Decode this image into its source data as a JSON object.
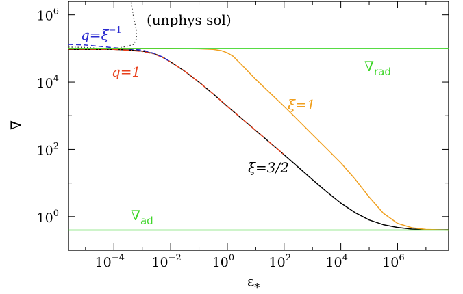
{
  "chart_data": {
    "type": "line",
    "xlabel": "ε",
    "xlabel_sub": "*",
    "ylabel": "∇",
    "x_scale": "log",
    "y_scale": "log",
    "xlim_log10": [
      -5.6,
      7.8
    ],
    "ylim_log10": [
      -1.0,
      6.4
    ],
    "x_tick_exponents": [
      -4,
      -2,
      0,
      2,
      4,
      6
    ],
    "y_tick_exponents": [
      0,
      2,
      4,
      6
    ],
    "tick_base": "10",
    "grid": false,
    "series": [
      {
        "id": "xi-3-2",
        "color": "#000000",
        "dash": "solid",
        "points": [
          [
            -5.6,
            4.97
          ],
          [
            -4,
            4.97
          ],
          [
            -3.4,
            4.95
          ],
          [
            -3,
            4.92
          ],
          [
            -2.6,
            4.85
          ],
          [
            -2.3,
            4.75
          ],
          [
            -2,
            4.6
          ],
          [
            -1.5,
            4.32
          ],
          [
            -1,
            4.0
          ],
          [
            -0.5,
            3.65
          ],
          [
            0,
            3.28
          ],
          [
            0.5,
            2.92
          ],
          [
            1,
            2.56
          ],
          [
            1.5,
            2.2
          ],
          [
            2,
            1.84
          ],
          [
            2.5,
            1.47
          ],
          [
            3,
            1.1
          ],
          [
            3.5,
            0.74
          ],
          [
            4,
            0.4
          ],
          [
            4.5,
            0.12
          ],
          [
            5,
            -0.1
          ],
          [
            5.5,
            -0.24
          ],
          [
            6,
            -0.32
          ],
          [
            6.5,
            -0.37
          ],
          [
            7,
            -0.39
          ],
          [
            7.8,
            -0.39
          ]
        ]
      },
      {
        "id": "q-1",
        "color": "#e8401c",
        "dash": "dashdot",
        "points": [
          [
            -5.6,
            4.98
          ],
          [
            -4,
            4.97
          ],
          [
            -3.4,
            4.94
          ],
          [
            -3,
            4.91
          ],
          [
            -2.6,
            4.84
          ],
          [
            -2.3,
            4.74
          ],
          [
            -2,
            4.6
          ],
          [
            -1.5,
            4.32
          ],
          [
            -1,
            4.0
          ],
          [
            -0.5,
            3.65
          ],
          [
            0,
            3.28
          ],
          [
            0.5,
            2.92
          ],
          [
            1,
            2.56
          ],
          [
            1.5,
            2.2
          ],
          [
            2,
            1.84
          ]
        ]
      },
      {
        "id": "q-xi-inv",
        "color": "#2a2ad0",
        "dash": "dashed",
        "points": [
          [
            -5.6,
            5.12
          ],
          [
            -5,
            5.1
          ],
          [
            -4.5,
            5.06
          ],
          [
            -4,
            5.02
          ],
          [
            -3.5,
            4.99
          ],
          [
            -3,
            4.95
          ],
          [
            -2.6,
            4.86
          ],
          [
            -2.3,
            4.75
          ],
          [
            -2,
            4.6
          ]
        ]
      },
      {
        "id": "unphys",
        "color": "#444444",
        "dash": "dotted",
        "points": [
          [
            -5.6,
            5.04
          ],
          [
            -5,
            5.03
          ],
          [
            -4.5,
            5.0
          ],
          [
            -4.2,
            4.97
          ],
          [
            -3.9,
            5.01
          ],
          [
            -3.55,
            5.06
          ],
          [
            -3.3,
            5.12
          ],
          [
            -3.2,
            5.3
          ],
          [
            -3.22,
            5.6
          ],
          [
            -3.3,
            5.9
          ],
          [
            -3.4,
            6.4
          ]
        ]
      },
      {
        "id": "xi-1",
        "color": "#f0a020",
        "dash": "solid",
        "points": [
          [
            -5.6,
            5.0
          ],
          [
            -2,
            5.0
          ],
          [
            -1,
            4.99
          ],
          [
            -0.5,
            4.97
          ],
          [
            -0.2,
            4.93
          ],
          [
            0,
            4.87
          ],
          [
            0.2,
            4.77
          ],
          [
            0.5,
            4.52
          ],
          [
            1,
            4.08
          ],
          [
            1.5,
            3.68
          ],
          [
            2,
            3.28
          ],
          [
            2.5,
            2.86
          ],
          [
            3,
            2.44
          ],
          [
            3.5,
            2.02
          ],
          [
            4,
            1.6
          ],
          [
            4.5,
            1.12
          ],
          [
            5,
            0.58
          ],
          [
            5.5,
            0.1
          ],
          [
            6,
            -0.2
          ],
          [
            6.5,
            -0.33
          ],
          [
            7,
            -0.38
          ],
          [
            7.8,
            -0.4
          ]
        ]
      },
      {
        "id": "nabla-rad",
        "color": "#3fd62a",
        "dash": "solid",
        "points": [
          [
            -5.6,
            5.0
          ],
          [
            7.8,
            5.0
          ]
        ]
      },
      {
        "id": "nabla-ad",
        "color": "#3fd62a",
        "dash": "solid",
        "points": [
          [
            -5.6,
            -0.4
          ],
          [
            7.8,
            -0.4
          ]
        ]
      }
    ],
    "annotations": [
      {
        "id": "label-q-xi-inv",
        "text": "q=ξ",
        "sup": "−1",
        "color": "#2a2ad0",
        "italic": true
      },
      {
        "id": "label-unphys",
        "text": "(unphys sol)",
        "color": "#000000",
        "italic": false
      },
      {
        "id": "label-q-1",
        "text": "q=1",
        "color": "#e8401c",
        "italic": true
      },
      {
        "id": "label-nabla-rad",
        "text": "∇",
        "sub": "rad",
        "color": "#3fd62a",
        "italic": false
      },
      {
        "id": "label-xi-1",
        "text": "ξ=1",
        "color": "#f0a020",
        "italic": true
      },
      {
        "id": "label-xi-3-2",
        "text": "ξ=3/2",
        "color": "#000000",
        "italic": true
      },
      {
        "id": "label-nabla-ad",
        "text": "∇",
        "sub": "ad",
        "color": "#3fd62a",
        "italic": false
      }
    ]
  }
}
